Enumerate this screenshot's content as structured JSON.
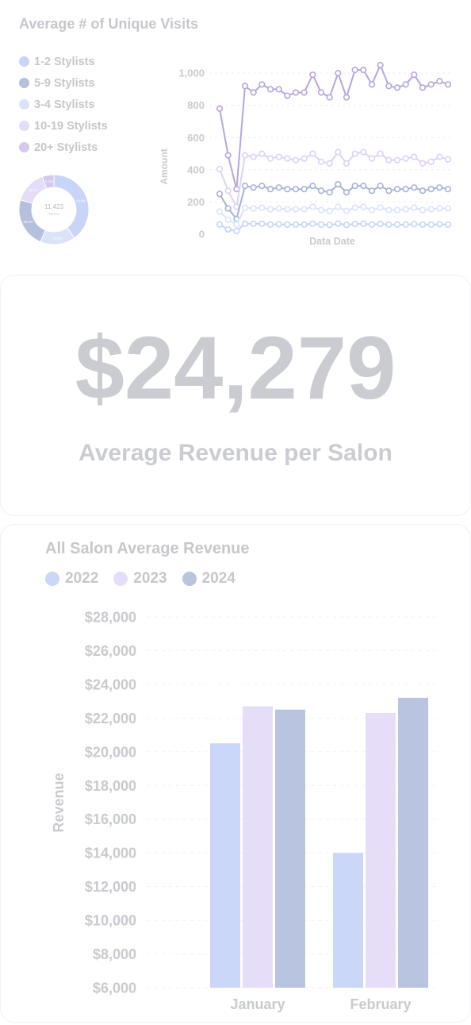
{
  "visits": {
    "title": "Average # of Unique Visits",
    "legend": [
      {
        "label": "1-2 Stylists",
        "color": "#c8d4f8"
      },
      {
        "label": "5-9 Stylists",
        "color": "#b5c0de"
      },
      {
        "label": "3-4 Stylists",
        "color": "#dbe3fb"
      },
      {
        "label": "10-19 Stylists",
        "color": "#e4dcf8"
      },
      {
        "label": "20+ Stylists",
        "color": "#d3c8ee"
      }
    ],
    "donut": {
      "total_value": "11,423",
      "total_label": "TOTAL",
      "slices": [
        {
          "label": "40.0%",
          "value": 40.0,
          "color": "#c8d4f8"
        },
        {
          "label": "16.3%",
          "value": 16.3,
          "color": "#dbe3fb"
        },
        {
          "label": "23.2%",
          "value": 23.2,
          "color": "#b5c0de"
        },
        {
          "label": "15.1%",
          "value": 15.1,
          "color": "#e4dcf8"
        },
        {
          "label": "5.4%",
          "value": 5.4,
          "color": "#d3c8ee"
        }
      ]
    }
  },
  "kpi": {
    "value": "$24,279",
    "label": "Average Revenue per Salon"
  },
  "revenue": {
    "title": "All Salon Average Revenue",
    "legend": [
      {
        "label": "2022",
        "color": "#cad7f9"
      },
      {
        "label": "2023",
        "color": "#e6ddf9"
      },
      {
        "label": "2024",
        "color": "#b9c4e1"
      }
    ]
  },
  "chart_data": [
    {
      "type": "line",
      "title": "",
      "xlabel": "Data Date",
      "ylabel": "Amount",
      "ylim": [
        0,
        1050
      ],
      "yticks": [
        0,
        200,
        400,
        600,
        800,
        "1,000"
      ],
      "grid": true,
      "series": [
        {
          "name": "20+ Stylists",
          "color": "#b7a6dc",
          "values": [
            780,
            490,
            280,
            920,
            880,
            930,
            900,
            900,
            860,
            880,
            880,
            990,
            880,
            850,
            1000,
            850,
            1020,
            1020,
            930,
            1050,
            920,
            910,
            930,
            990,
            910,
            930,
            950,
            930
          ]
        },
        {
          "name": "10-19 Stylists",
          "color": "#ddd2f6",
          "values": [
            405,
            270,
            170,
            490,
            480,
            500,
            470,
            480,
            470,
            460,
            470,
            500,
            450,
            440,
            510,
            440,
            500,
            510,
            470,
            500,
            460,
            460,
            470,
            480,
            440,
            450,
            480,
            465
          ]
        },
        {
          "name": "5-9 Stylists",
          "color": "#a7b3d6",
          "values": [
            250,
            160,
            95,
            300,
            290,
            300,
            280,
            290,
            280,
            280,
            280,
            300,
            270,
            260,
            310,
            260,
            300,
            300,
            270,
            300,
            270,
            280,
            280,
            290,
            270,
            280,
            290,
            280
          ]
        },
        {
          "name": "3-4 Stylists",
          "color": "#dbe3fb",
          "values": [
            140,
            90,
            60,
            165,
            160,
            165,
            155,
            160,
            155,
            155,
            155,
            170,
            150,
            145,
            170,
            145,
            165,
            170,
            150,
            165,
            150,
            150,
            155,
            165,
            150,
            155,
            160,
            160
          ]
        },
        {
          "name": "1-2 Stylists",
          "color": "#c8d4f8",
          "values": [
            60,
            30,
            20,
            65,
            65,
            65,
            60,
            62,
            60,
            60,
            60,
            65,
            60,
            58,
            66,
            58,
            64,
            65,
            60,
            64,
            60,
            60,
            60,
            63,
            60,
            60,
            62,
            60
          ]
        }
      ]
    },
    {
      "type": "bar",
      "title": "All Salon Average Revenue",
      "xlabel": "",
      "ylabel": "Revenue",
      "categories": [
        "January",
        "February"
      ],
      "ylim": [
        6000,
        28000
      ],
      "yticks": [
        "$6,000",
        "$8,000",
        "$10,000",
        "$12,000",
        "$14,000",
        "$16,000",
        "$18,000",
        "$20,000",
        "$22,000",
        "$24,000",
        "$26,000",
        "$28,000"
      ],
      "grid": true,
      "legend_position": "top-left",
      "series": [
        {
          "name": "2022",
          "color": "#cad7f9",
          "values": [
            20500,
            14000
          ]
        },
        {
          "name": "2023",
          "color": "#e6ddf9",
          "values": [
            22700,
            22300
          ]
        },
        {
          "name": "2024",
          "color": "#b9c4e1",
          "values": [
            22500,
            23200
          ]
        }
      ]
    }
  ]
}
